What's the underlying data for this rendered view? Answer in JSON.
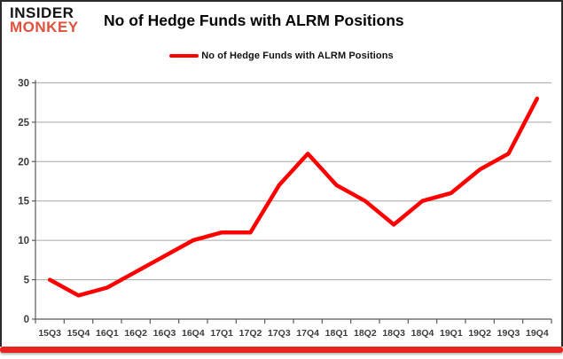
{
  "header": {
    "logo_line1": "INSIDER",
    "logo_line2": "MONKEY",
    "logo_color1": "#141414",
    "logo_color2": "#e0503c",
    "title": "No of Hedge Funds with ALRM Positions"
  },
  "legend": {
    "label": "No of Hedge Funds with ALRM Positions",
    "swatch_color": "#ff0000"
  },
  "chart_data": {
    "type": "line",
    "title": "No of Hedge Funds with ALRM Positions",
    "series_name": "No of Hedge Funds with ALRM Positions",
    "categories": [
      "15Q3",
      "15Q4",
      "16Q1",
      "16Q2",
      "16Q3",
      "16Q4",
      "17Q1",
      "17Q2",
      "17Q3",
      "17Q4",
      "18Q1",
      "18Q2",
      "18Q3",
      "18Q4",
      "19Q1",
      "19Q2",
      "19Q3",
      "19Q4"
    ],
    "values": [
      5,
      3,
      4,
      6,
      8,
      10,
      11,
      11,
      17,
      21,
      17,
      15,
      12,
      15,
      16,
      19,
      21,
      28
    ],
    "ylim": [
      0,
      30
    ],
    "yticks": [
      0,
      5,
      10,
      15,
      20,
      25,
      30
    ],
    "xlabel": "",
    "ylabel": "",
    "grid": true,
    "legend_position": "top-center",
    "line_color": "#ff0000",
    "gridline_color": "#a6a6a6",
    "axis_color": "#595959",
    "tick_label_color": "#3d3d3d"
  },
  "footer": {
    "bar_color": "#e8231d"
  }
}
